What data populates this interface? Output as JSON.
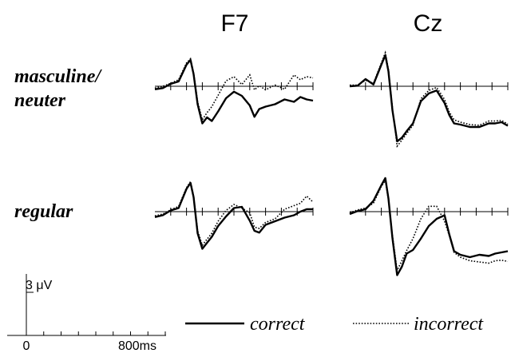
{
  "chart_data": {
    "type": "line",
    "columns": [
      "F7",
      "Cz"
    ],
    "rows": [
      "masculine/\nneuter",
      "regular"
    ],
    "legend": {
      "correct": "correct",
      "incorrect": "incorrect"
    },
    "scale_bar": {
      "amplitude_label": "3 μV",
      "amplitude_uv": 3,
      "time_start_label": "0",
      "time_end_label": "800ms"
    },
    "xlim": [
      -200,
      800
    ],
    "ylim": [
      -10,
      6
    ],
    "x_ticks": [
      -100,
      0,
      100,
      200,
      300,
      400,
      500,
      600,
      700,
      800
    ],
    "panels": [
      {
        "column": "F7",
        "row": "masculine/\nneuter",
        "series": [
          {
            "name": "correct",
            "x": [
              -200,
              -150,
              -100,
              -50,
              0,
              25,
              45,
              70,
              100,
              130,
              160,
              200,
              250,
              300,
              350,
              400,
              430,
              460,
              500,
              560,
              620,
              680,
              720,
              760,
              800
            ],
            "y": [
              -0.5,
              -0.3,
              0.4,
              0.8,
              3.6,
              4.4,
              2,
              -3,
              -6.2,
              -5.2,
              -5.8,
              -4.2,
              -2,
              -0.9,
              -1.6,
              -3.2,
              -5.1,
              -3.8,
              -3.4,
              -3,
              -2.2,
              -2.6,
              -1.8,
              -2.2,
              -2.4
            ]
          },
          {
            "name": "incorrect",
            "x": [
              -200,
              -150,
              -100,
              -50,
              0,
              25,
              45,
              70,
              100,
              130,
              160,
              200,
              250,
              300,
              350,
              400,
              430,
              460,
              500,
              560,
              620,
              680,
              720,
              760,
              800
            ],
            "y": [
              -0.3,
              0,
              0.5,
              1.1,
              3.9,
              4.6,
              2.2,
              -2.6,
              -5.6,
              -4.4,
              -3.4,
              -1.5,
              0.9,
              1.6,
              0.3,
              1.9,
              -0.6,
              0.1,
              -0.6,
              0.2,
              -0.5,
              1.9,
              1.1,
              1.6,
              1.4
            ]
          }
        ]
      },
      {
        "column": "Cz",
        "row": "masculine/\nneuter",
        "series": [
          {
            "name": "correct",
            "x": [
              -200,
              -150,
              -100,
              -50,
              0,
              25,
              45,
              70,
              100,
              130,
              160,
              200,
              250,
              300,
              350,
              400,
              430,
              460,
              500,
              560,
              620,
              680,
              720,
              760,
              800
            ],
            "y": [
              0,
              0.1,
              1.2,
              0.3,
              3.6,
              5.2,
              2.5,
              -4,
              -9.2,
              -8.6,
              -7.5,
              -6.2,
              -2.5,
              -1.2,
              -0.7,
              -2.8,
              -4.8,
              -6.2,
              -6.4,
              -6.8,
              -6.8,
              -6.2,
              -6.2,
              -6,
              -6.6
            ]
          },
          {
            "name": "incorrect",
            "x": [
              -200,
              -150,
              -100,
              -50,
              0,
              25,
              45,
              70,
              100,
              130,
              160,
              200,
              250,
              300,
              350,
              400,
              430,
              460,
              500,
              560,
              620,
              680,
              720,
              760,
              800
            ],
            "y": [
              0.2,
              0.2,
              1,
              0.5,
              3.9,
              5.6,
              2.8,
              -3.6,
              -10,
              -9,
              -7.9,
              -6.5,
              -2.1,
              -0.7,
              -0.2,
              -2.2,
              -4.3,
              -5.6,
              -6,
              -6.4,
              -6.5,
              -5.8,
              -5.8,
              -5.7,
              -6.3
            ]
          }
        ]
      },
      {
        "column": "F7",
        "row": "regular",
        "series": [
          {
            "name": "correct",
            "x": [
              -200,
              -150,
              -100,
              -50,
              0,
              25,
              45,
              70,
              100,
              130,
              160,
              200,
              250,
              300,
              350,
              400,
              430,
              460,
              500,
              560,
              620,
              680,
              720,
              760,
              800
            ],
            "y": [
              -0.9,
              -0.6,
              0.2,
              0.6,
              3.8,
              4.8,
              2.4,
              -3.6,
              -6.2,
              -5.2,
              -4.2,
              -2.4,
              -0.8,
              0.6,
              0.8,
              -1.5,
              -3.2,
              -3.5,
              -2.2,
              -1.6,
              -1,
              -0.6,
              0,
              0.4,
              0.4
            ]
          },
          {
            "name": "incorrect",
            "x": [
              -200,
              -150,
              -100,
              -50,
              0,
              25,
              45,
              70,
              100,
              130,
              160,
              200,
              250,
              300,
              350,
              400,
              430,
              460,
              500,
              560,
              620,
              680,
              720,
              760,
              800
            ],
            "y": [
              -0.7,
              -0.4,
              0.3,
              0.9,
              4,
              5,
              2.6,
              -3.2,
              -5.6,
              -4.6,
              -3.6,
              -1.6,
              0.2,
              1.2,
              0.6,
              -0.2,
              -2.6,
              -2.8,
              -1.8,
              -1.2,
              0.4,
              1,
              1.4,
              2.6,
              1.6
            ]
          }
        ]
      },
      {
        "column": "Cz",
        "row": "regular",
        "series": [
          {
            "name": "correct",
            "x": [
              -200,
              -150,
              -100,
              -50,
              0,
              25,
              45,
              70,
              100,
              130,
              160,
              200,
              250,
              300,
              350,
              400,
              430,
              460,
              500,
              560,
              620,
              680,
              720,
              760,
              800
            ],
            "y": [
              -0.4,
              0.1,
              0.4,
              1.8,
              4.4,
              5.6,
              2.2,
              -4.4,
              -10.6,
              -9.2,
              -7,
              -6.4,
              -4.5,
              -2.4,
              -1.2,
              -0.6,
              -3.8,
              -6.6,
              -7.2,
              -7.6,
              -7.2,
              -7.4,
              -7,
              -6.8,
              -6.6
            ]
          },
          {
            "name": "incorrect",
            "x": [
              -200,
              -150,
              -100,
              -50,
              0,
              25,
              45,
              70,
              100,
              130,
              160,
              200,
              250,
              300,
              350,
              400,
              430,
              460,
              500,
              560,
              620,
              680,
              720,
              760,
              800
            ],
            "y": [
              -0.2,
              0.3,
              0.6,
              1.4,
              4.2,
              5.2,
              2,
              -4,
              -9.8,
              -8.2,
              -6.5,
              -4.5,
              -1.2,
              0.9,
              0.9,
              -1.6,
              -4,
              -6.8,
              -7.6,
              -8.2,
              -8.4,
              -8.6,
              -8.2,
              -8.1,
              -8.3
            ]
          }
        ]
      }
    ]
  }
}
